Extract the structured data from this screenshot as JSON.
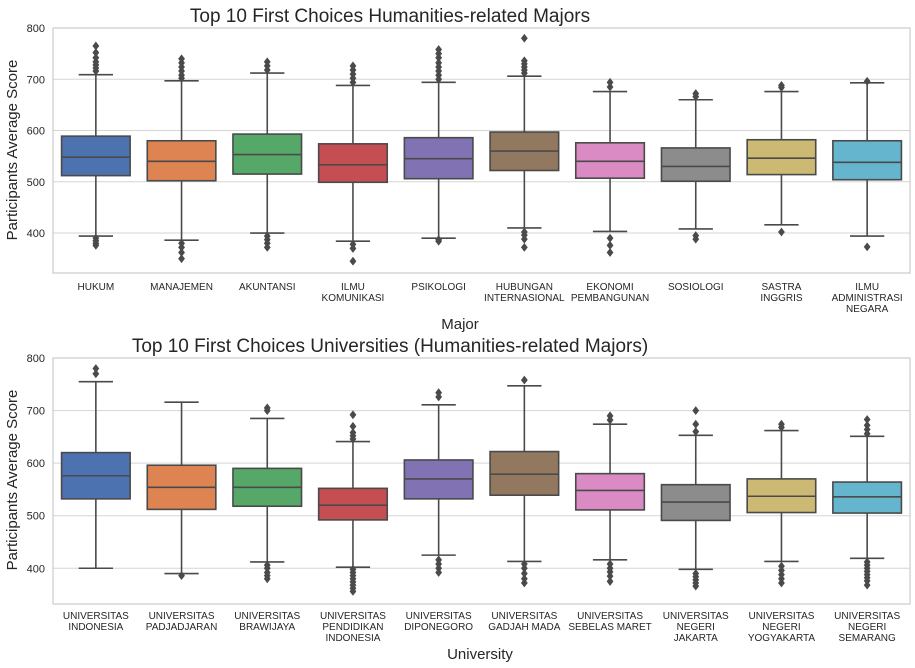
{
  "chart_data": [
    {
      "type": "boxplot",
      "title": "Top 10 First Choices Humanities-related Majors",
      "xlabel": "Major",
      "ylabel": "Participants Average Score",
      "ylim": [
        322,
        800
      ],
      "yticks": [
        400,
        500,
        600,
        700,
        800
      ],
      "grid": "horizontal",
      "categories": [
        [
          "HUKUM"
        ],
        [
          "MANAJEMEN"
        ],
        [
          "AKUNTANSI"
        ],
        [
          "ILMU",
          "KOMUNIKASI"
        ],
        [
          "PSIKOLOGI"
        ],
        [
          "HUBUNGAN",
          "INTERNASIONAL"
        ],
        [
          "EKONOMI",
          "PEMBANGUNAN"
        ],
        [
          "SOSIOLOGI"
        ],
        [
          "SASTRA",
          "INGGRIS"
        ],
        [
          "ILMU",
          "ADMINISTRASI",
          "NEGARA"
        ]
      ],
      "boxes": [
        {
          "q1": 512,
          "median": 548,
          "q3": 589,
          "whisker_low": 394,
          "whisker_high": 709,
          "outliers_low": [
            376,
            380,
            385,
            390
          ],
          "outliers_high": [
            716,
            722,
            728,
            734,
            742,
            752,
            765
          ]
        },
        {
          "q1": 502,
          "median": 540,
          "q3": 580,
          "whisker_low": 386,
          "whisker_high": 697,
          "outliers_low": [
            350,
            362,
            372,
            380
          ],
          "outliers_high": [
            702,
            708,
            716,
            724,
            732,
            740
          ]
        },
        {
          "q1": 515,
          "median": 553,
          "q3": 593,
          "whisker_low": 400,
          "whisker_high": 712,
          "outliers_low": [
            372,
            380,
            387,
            394
          ],
          "outliers_high": [
            718,
            726,
            734
          ]
        },
        {
          "q1": 499,
          "median": 533,
          "q3": 574,
          "whisker_low": 384,
          "whisker_high": 688,
          "outliers_low": [
            345,
            370,
            378
          ],
          "outliers_high": [
            694,
            702,
            710,
            718,
            726
          ]
        },
        {
          "q1": 506,
          "median": 545,
          "q3": 586,
          "whisker_low": 390,
          "whisker_high": 694,
          "outliers_low": [
            384,
            387
          ],
          "outliers_high": [
            700,
            708,
            716,
            724,
            732,
            742,
            750,
            758
          ]
        },
        {
          "q1": 522,
          "median": 560,
          "q3": 597,
          "whisker_low": 410,
          "whisker_high": 706,
          "outliers_low": [
            372,
            388,
            396,
            402
          ],
          "outliers_high": [
            712,
            718,
            724,
            730,
            736,
            780
          ]
        },
        {
          "q1": 507,
          "median": 540,
          "q3": 576,
          "whisker_low": 403,
          "whisker_high": 676,
          "outliers_low": [
            362,
            376,
            390
          ],
          "outliers_high": [
            685,
            694
          ]
        },
        {
          "q1": 501,
          "median": 530,
          "q3": 566,
          "whisker_low": 408,
          "whisker_high": 660,
          "outliers_low": [
            388,
            395
          ],
          "outliers_high": [
            666,
            672
          ]
        },
        {
          "q1": 514,
          "median": 546,
          "q3": 582,
          "whisker_low": 416,
          "whisker_high": 676,
          "outliers_low": [
            402
          ],
          "outliers_high": [
            684,
            688
          ]
        },
        {
          "q1": 504,
          "median": 538,
          "q3": 580,
          "whisker_low": 394,
          "whisker_high": 693,
          "outliers_low": [
            373
          ],
          "outliers_high": [
            696
          ]
        }
      ]
    },
    {
      "type": "boxplot",
      "title": "Top 10 First Choices Universities (Humanities-related Majors)",
      "xlabel": "University",
      "ylabel": "Participants Average Score",
      "ylim": [
        332,
        800
      ],
      "yticks": [
        400,
        500,
        600,
        700,
        800
      ],
      "grid": "horizontal",
      "categories": [
        [
          "UNIVERSITAS",
          "INDONESIA"
        ],
        [
          "UNIVERSITAS",
          "PADJADJARAN"
        ],
        [
          "UNIVERSITAS",
          "BRAWIJAYA"
        ],
        [
          "UNIVERSITAS",
          "PENDIDIKAN",
          "INDONESIA"
        ],
        [
          "UNIVERSITAS",
          "DIPONEGORO"
        ],
        [
          "UNIVERSITAS",
          "GADJAH MADA"
        ],
        [
          "UNIVERSITAS",
          "SEBELAS MARET"
        ],
        [
          "UNIVERSITAS",
          "NEGERI",
          "JAKARTA"
        ],
        [
          "UNIVERSITAS",
          "NEGERI",
          "YOGYAKARTA"
        ],
        [
          "UNIVERSITAS",
          "NEGERI",
          "SEMARANG"
        ]
      ],
      "boxes": [
        {
          "q1": 532,
          "median": 576,
          "q3": 620,
          "whisker_low": 400,
          "whisker_high": 755,
          "outliers_low": [],
          "outliers_high": [
            770,
            780
          ]
        },
        {
          "q1": 512,
          "median": 554,
          "q3": 596,
          "whisker_low": 390,
          "whisker_high": 716,
          "outliers_low": [
            386
          ],
          "outliers_high": []
        },
        {
          "q1": 518,
          "median": 554,
          "q3": 590,
          "whisker_low": 412,
          "whisker_high": 685,
          "outliers_low": [
            380,
            386,
            392,
            400,
            406
          ],
          "outliers_high": [
            700,
            705
          ]
        },
        {
          "q1": 492,
          "median": 520,
          "q3": 552,
          "whisker_low": 402,
          "whisker_high": 641,
          "outliers_low": [
            356,
            362,
            368,
            374,
            380,
            386,
            392,
            398
          ],
          "outliers_high": [
            646,
            652,
            658,
            670,
            692
          ]
        },
        {
          "q1": 532,
          "median": 570,
          "q3": 606,
          "whisker_low": 425,
          "whisker_high": 711,
          "outliers_low": [
            392,
            400,
            408,
            416
          ],
          "outliers_high": [
            726,
            734
          ]
        },
        {
          "q1": 539,
          "median": 579,
          "q3": 622,
          "whisker_low": 413,
          "whisker_high": 747,
          "outliers_low": [
            372,
            380,
            390,
            400,
            408
          ],
          "outliers_high": [
            758
          ]
        },
        {
          "q1": 511,
          "median": 548,
          "q3": 580,
          "whisker_low": 416,
          "whisker_high": 674,
          "outliers_low": [
            375,
            385,
            393,
            400,
            408
          ],
          "outliers_high": [
            682,
            690
          ]
        },
        {
          "q1": 491,
          "median": 526,
          "q3": 559,
          "whisker_low": 398,
          "whisker_high": 653,
          "outliers_low": [
            366,
            372,
            378,
            384,
            390
          ],
          "outliers_high": [
            660,
            674,
            700
          ]
        },
        {
          "q1": 506,
          "median": 537,
          "q3": 570,
          "whisker_low": 413,
          "whisker_high": 662,
          "outliers_low": [
            372,
            380,
            388,
            396,
            404
          ],
          "outliers_high": [
            668,
            674
          ]
        },
        {
          "q1": 505,
          "median": 536,
          "q3": 564,
          "whisker_low": 419,
          "whisker_high": 651,
          "outliers_low": [
            368,
            376,
            382,
            388,
            394,
            400,
            406,
            412
          ],
          "outliers_high": [
            656,
            664,
            672,
            683
          ]
        }
      ]
    }
  ],
  "colors": [
    "#4c72b0",
    "#dd8452",
    "#55a868",
    "#c44e52",
    "#8172b3",
    "#937860",
    "#da8bc3",
    "#8c8c8c",
    "#ccb974",
    "#64b5cd"
  ]
}
